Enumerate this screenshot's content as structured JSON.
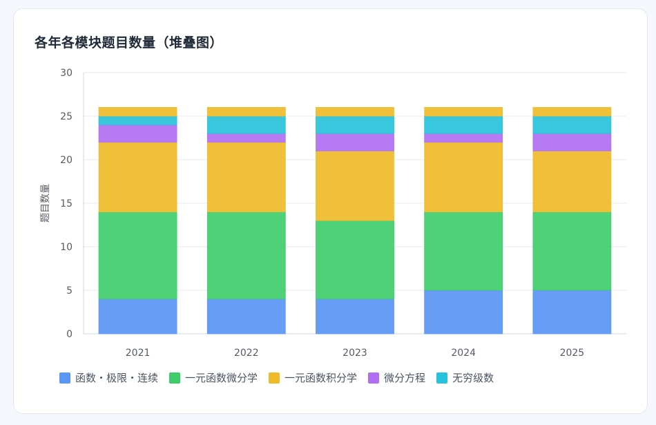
{
  "card": {
    "title": "各年各模块题目数量（堆叠图）"
  },
  "chart_data": {
    "type": "bar",
    "stacked": true,
    "title": "各年各模块题目数量（堆叠图）",
    "xlabel": "",
    "ylabel": "题目数量",
    "ylim": [
      0,
      30
    ],
    "yticks": [
      0,
      5,
      10,
      15,
      20,
      25,
      30
    ],
    "grid": true,
    "legend_position": "bottom-left",
    "categories": [
      "2021",
      "2022",
      "2023",
      "2024",
      "2025"
    ],
    "series": [
      {
        "name": "函数・极限・连续",
        "color": "#5b95f5",
        "values": [
          4,
          4,
          4,
          5,
          5
        ]
      },
      {
        "name": "一元函数微分学",
        "color": "#3fcd6b",
        "values": [
          10,
          10,
          9,
          9,
          9
        ]
      },
      {
        "name": "一元函数积分学",
        "color": "#f0bb2a",
        "values": [
          8,
          8,
          8,
          8,
          7
        ]
      },
      {
        "name": "微分方程",
        "color": "#b06ff2",
        "values": [
          2,
          1,
          2,
          1,
          2
        ]
      },
      {
        "name": "无穷级数",
        "color": "#28c2da",
        "values": [
          1,
          2,
          2,
          2,
          2
        ]
      },
      {
        "name": "",
        "color": "#f0bb2a",
        "values": [
          1,
          1,
          1,
          1,
          1
        ]
      }
    ]
  }
}
